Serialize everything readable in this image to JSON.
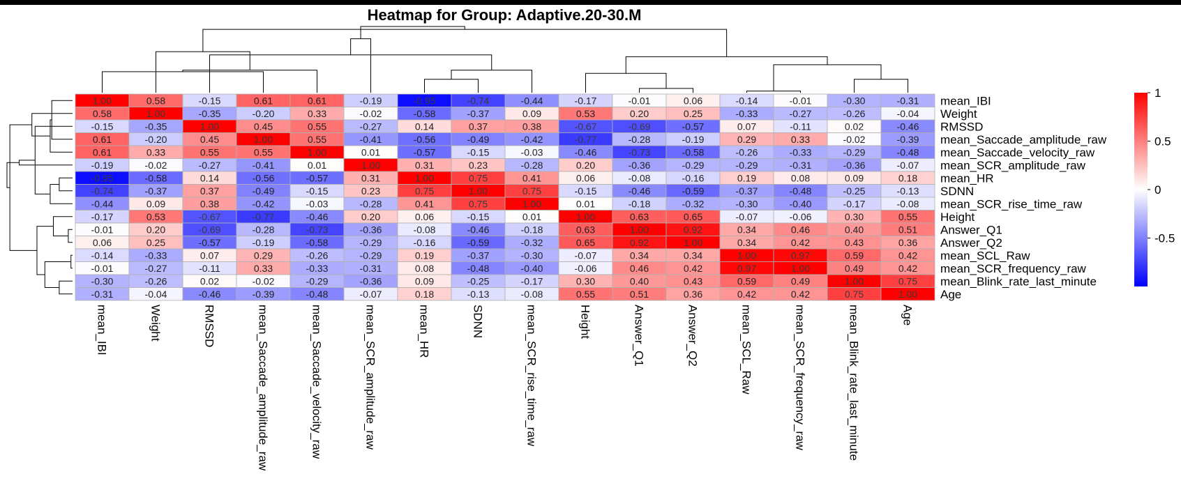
{
  "chart_data": {
    "type": "heatmap",
    "title": "Heatmap for Group: Adaptive.20-30.M",
    "columns": [
      "mean_IBI",
      "Weight",
      "RMSSD",
      "mean_Saccade_amplitude_raw",
      "mean_Saccade_velocity_raw",
      "mean_SCR_amplitude_raw",
      "mean_HR",
      "SDNN",
      "mean_SCR_rise_time_raw",
      "Height",
      "Answer_Q1",
      "Answer_Q2",
      "mean_SCL_Raw",
      "mean_SCR_frequency_raw",
      "mean_Blink_rate_last_minute",
      "Age"
    ],
    "rows": [
      "mean_IBI",
      "Weight",
      "RMSSD",
      "mean_Saccade_amplitude_raw",
      "mean_Saccade_velocity_raw",
      "mean_SCR_amplitude_raw",
      "mean_HR",
      "SDNN",
      "mean_SCR_rise_time_raw",
      "Height",
      "Answer_Q1",
      "Answer_Q2",
      "mean_SCL_Raw",
      "mean_SCR_frequency_raw",
      "mean_Blink_rate_last_minute",
      "Age"
    ],
    "values": [
      [
        1.0,
        0.58,
        -0.15,
        0.61,
        0.61,
        -0.19,
        -0.95,
        -0.74,
        -0.44,
        -0.17,
        -0.01,
        0.06,
        -0.14,
        -0.01,
        -0.3,
        -0.31
      ],
      [
        0.58,
        1.0,
        -0.35,
        -0.2,
        0.33,
        -0.02,
        -0.58,
        -0.37,
        0.09,
        0.53,
        0.2,
        0.25,
        -0.33,
        -0.27,
        -0.26,
        -0.04
      ],
      [
        -0.15,
        -0.35,
        1.0,
        0.45,
        0.55,
        -0.27,
        0.14,
        0.37,
        0.38,
        -0.67,
        -0.69,
        -0.57,
        0.07,
        -0.11,
        0.02,
        -0.46
      ],
      [
        0.61,
        -0.2,
        0.45,
        1.0,
        0.55,
        -0.41,
        -0.56,
        -0.49,
        -0.42,
        -0.77,
        -0.28,
        -0.19,
        0.29,
        0.33,
        -0.02,
        -0.39
      ],
      [
        0.61,
        0.33,
        0.55,
        0.55,
        1.0,
        0.01,
        -0.57,
        -0.15,
        -0.03,
        -0.46,
        -0.73,
        -0.58,
        -0.26,
        -0.33,
        -0.29,
        -0.48
      ],
      [
        -0.19,
        -0.02,
        -0.27,
        -0.41,
        0.01,
        1.0,
        0.31,
        0.23,
        -0.28,
        0.2,
        -0.36,
        -0.29,
        -0.29,
        -0.31,
        -0.36,
        -0.07
      ],
      [
        -0.95,
        -0.58,
        0.14,
        -0.56,
        -0.57,
        0.31,
        1.0,
        0.75,
        0.41,
        0.06,
        -0.08,
        -0.16,
        0.19,
        0.08,
        0.09,
        0.18
      ],
      [
        -0.74,
        -0.37,
        0.37,
        -0.49,
        -0.15,
        0.23,
        0.75,
        1.0,
        0.75,
        -0.15,
        -0.46,
        -0.59,
        -0.37,
        -0.48,
        -0.25,
        -0.13
      ],
      [
        -0.44,
        0.09,
        0.38,
        -0.42,
        -0.03,
        -0.28,
        0.41,
        0.75,
        1.0,
        0.01,
        -0.18,
        -0.32,
        -0.3,
        -0.4,
        -0.17,
        -0.08
      ],
      [
        -0.17,
        0.53,
        -0.67,
        -0.77,
        -0.46,
        0.2,
        0.06,
        -0.15,
        0.01,
        1.0,
        0.63,
        0.65,
        -0.07,
        -0.06,
        0.3,
        0.55
      ],
      [
        -0.01,
        0.2,
        -0.69,
        -0.28,
        -0.73,
        -0.36,
        -0.08,
        -0.46,
        -0.18,
        0.63,
        1.0,
        0.92,
        0.34,
        0.46,
        0.4,
        0.51
      ],
      [
        0.06,
        0.25,
        -0.57,
        -0.19,
        -0.58,
        -0.29,
        -0.16,
        -0.59,
        -0.32,
        0.65,
        0.92,
        1.0,
        0.34,
        0.42,
        0.43,
        0.36
      ],
      [
        -0.14,
        -0.33,
        0.07,
        0.29,
        -0.26,
        -0.29,
        0.19,
        -0.37,
        -0.3,
        -0.07,
        0.34,
        0.34,
        1.0,
        0.97,
        0.59,
        0.42
      ],
      [
        -0.01,
        -0.27,
        -0.11,
        0.33,
        -0.33,
        -0.31,
        0.08,
        -0.48,
        -0.4,
        -0.06,
        0.46,
        0.42,
        0.97,
        1.0,
        0.49,
        0.42
      ],
      [
        -0.3,
        -0.26,
        0.02,
        -0.02,
        -0.29,
        -0.36,
        0.09,
        -0.25,
        -0.17,
        0.3,
        0.4,
        0.43,
        0.59,
        0.49,
        1.0,
        0.75
      ],
      [
        -0.31,
        -0.04,
        -0.46,
        -0.39,
        -0.48,
        -0.07,
        0.18,
        -0.13,
        -0.08,
        0.55,
        0.51,
        0.36,
        0.42,
        0.42,
        0.75,
        1.0
      ]
    ],
    "color_scale": {
      "low": "#0000ff",
      "mid": "#ffffff",
      "high": "#ff0000",
      "range": [
        -1,
        1
      ]
    },
    "legend_ticks": [
      "1",
      "0.5",
      "0",
      "-0.5"
    ],
    "legend_placement": "right",
    "dendrograms": [
      "top",
      "left"
    ]
  }
}
